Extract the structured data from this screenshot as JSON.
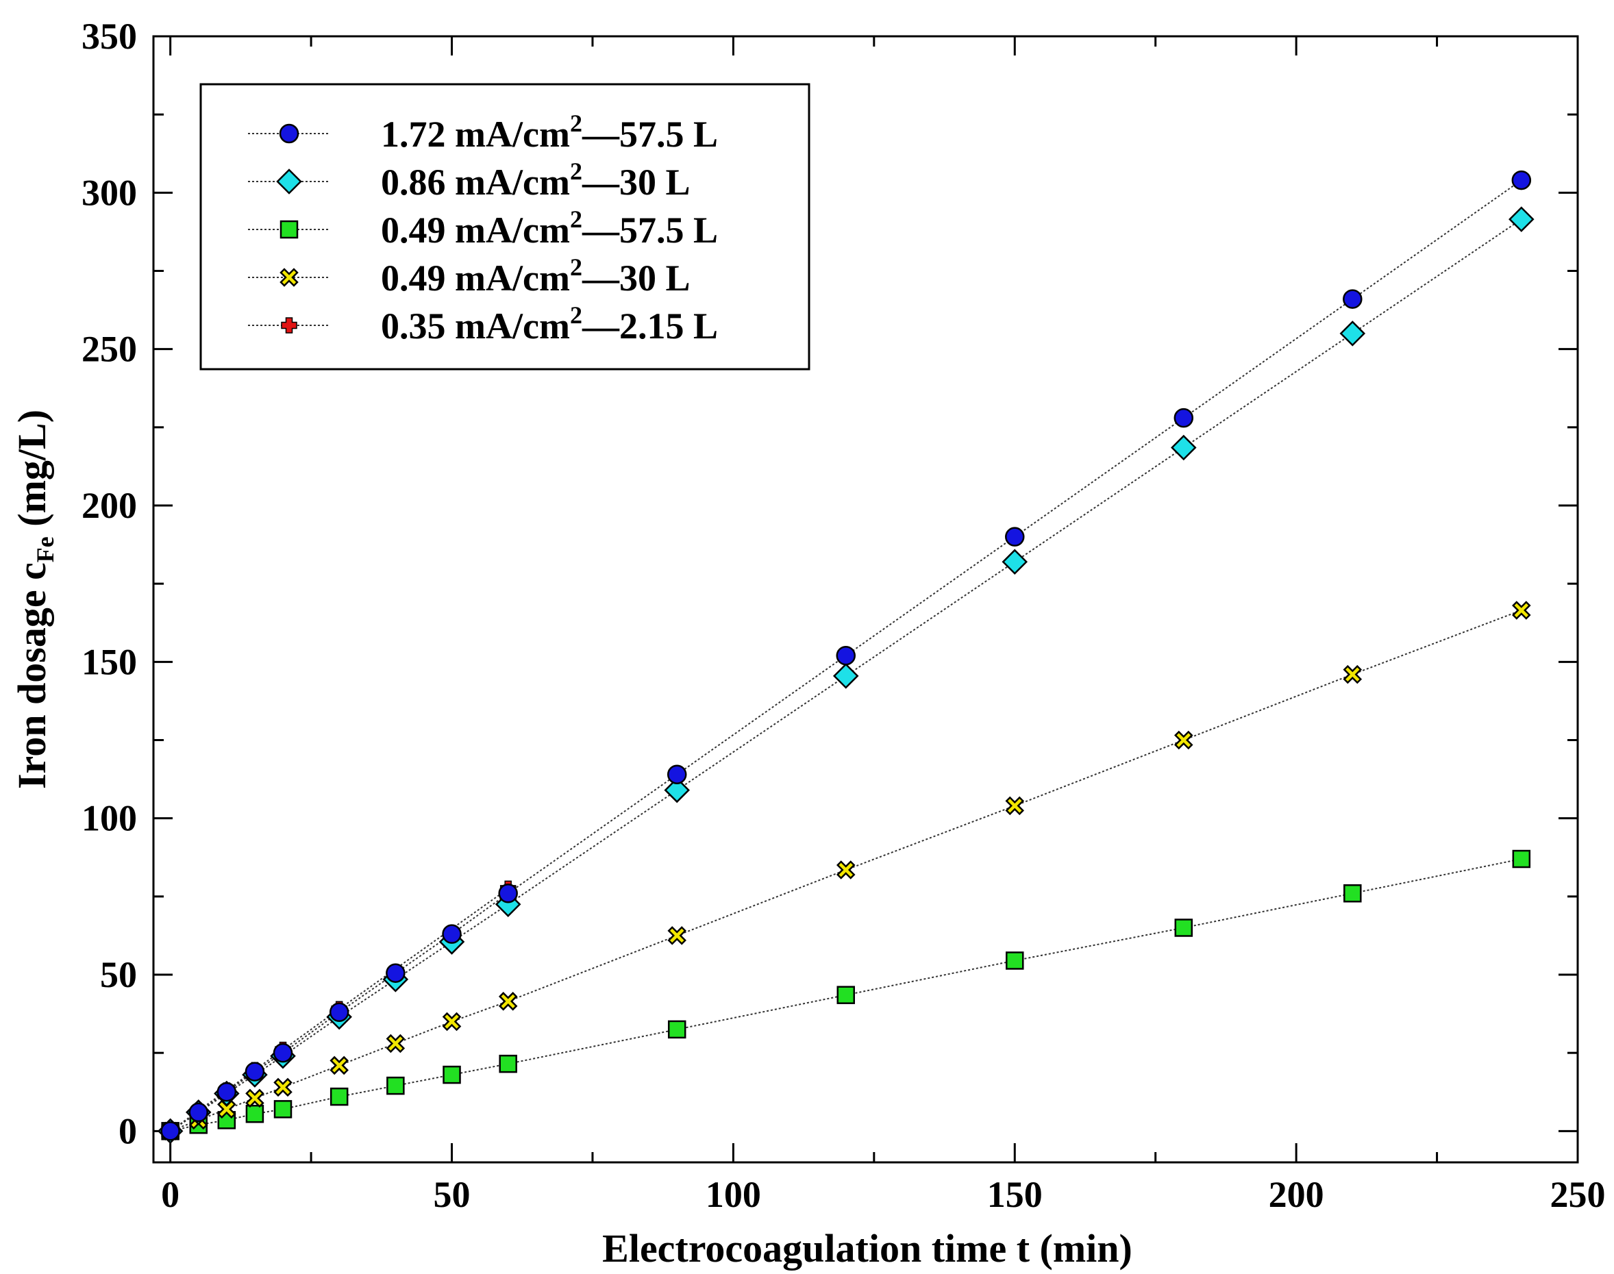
{
  "chart_data": {
    "type": "line",
    "xlabel": "Electrocoagulation time t (min)",
    "ylabel": {
      "main": "Iron dosage c",
      "subscript": "Fe",
      "unit": " (mg/L)"
    },
    "xlim": [
      -3,
      250
    ],
    "ylim": [
      -10,
      350
    ],
    "xticks": [
      0,
      50,
      100,
      150,
      200,
      250
    ],
    "yticks": [
      0,
      50,
      100,
      150,
      200,
      250,
      300,
      350
    ],
    "grid": false,
    "legend_position": "top-left",
    "series": [
      {
        "name": "1.72 mA/cm²—57.5 L",
        "label": {
          "pre": "1.72 mA/cm",
          "sup": "2",
          "post": "—57.5 L"
        },
        "marker": "circle",
        "color": "#1414e0",
        "x": [
          0,
          5,
          10,
          15,
          20,
          30,
          40,
          50,
          60,
          90,
          120,
          150,
          180,
          210,
          240
        ],
        "y": [
          0,
          6,
          12.5,
          19,
          25,
          38,
          50.5,
          63,
          76,
          114,
          152,
          190,
          228,
          266,
          304
        ]
      },
      {
        "name": "0.86 mA/cm²—30 L",
        "label": {
          "pre": "0.86 mA/cm",
          "sup": "2",
          "post": "—30 L"
        },
        "marker": "diamond",
        "color": "#1ee0e8",
        "x": [
          0,
          5,
          10,
          15,
          20,
          30,
          40,
          50,
          60,
          90,
          120,
          150,
          180,
          210,
          240
        ],
        "y": [
          0,
          6,
          12,
          18,
          24,
          36.5,
          48.5,
          60.5,
          72.5,
          109,
          145.5,
          182,
          218.5,
          255,
          291.5
        ]
      },
      {
        "name": "0.49 mA/cm²—57.5 L",
        "label": {
          "pre": "0.49 mA/cm",
          "sup": "2",
          "post": "—57.5 L"
        },
        "marker": "square",
        "color": "#22e022",
        "x": [
          0,
          5,
          10,
          15,
          20,
          30,
          40,
          50,
          60,
          90,
          120,
          150,
          180,
          210,
          240
        ],
        "y": [
          0,
          2,
          3.5,
          5.5,
          7,
          11,
          14.5,
          18,
          21.5,
          32.5,
          43.5,
          54.5,
          65,
          76,
          87
        ]
      },
      {
        "name": "0.49 mA/cm²—30 L",
        "label": {
          "pre": "0.49 mA/cm",
          "sup": "2",
          "post": "—30 L"
        },
        "marker": "x",
        "color": "#f2e600",
        "x": [
          0,
          5,
          10,
          15,
          20,
          30,
          40,
          50,
          60,
          90,
          120,
          150,
          180,
          210,
          240
        ],
        "y": [
          0,
          3.5,
          7,
          10.5,
          14,
          21,
          28,
          35,
          41.5,
          62.5,
          83.5,
          104,
          125,
          146,
          166.5
        ]
      },
      {
        "name": "0.35 mA/cm²—2.15 L",
        "label": {
          "pre": "0.35 mA/cm",
          "sup": "2",
          "post": "—2.15 L"
        },
        "marker": "plus",
        "color": "#e01414",
        "x": [
          0,
          5,
          10,
          15,
          20,
          30,
          60
        ],
        "y": [
          0,
          6.5,
          13,
          19.5,
          26,
          39,
          77.5
        ]
      }
    ]
  }
}
